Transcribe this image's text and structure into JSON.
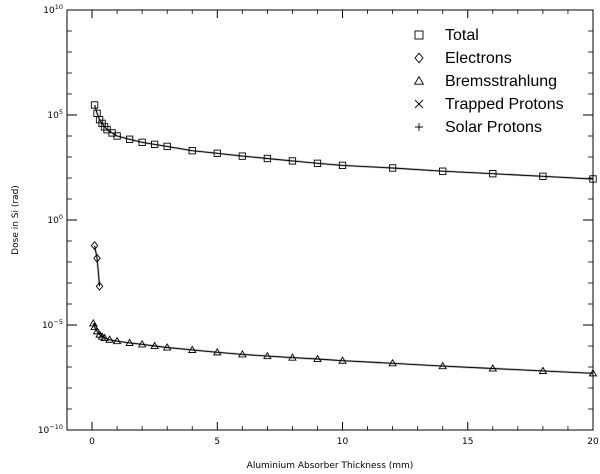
{
  "chart_data": {
    "type": "scatter",
    "xlabel": "Aluminium Absorber Thickness (mm)",
    "ylabel": "Dose in Si (rad)",
    "xlim": [
      -1,
      20
    ],
    "ylim_log10": [
      -10,
      10
    ],
    "yscale": "log",
    "x_ticks": [
      0,
      5,
      10,
      15,
      20
    ],
    "y_tick_exponents": [
      -10,
      -5,
      0,
      5,
      10
    ],
    "y_tick_base": "10",
    "grid": false,
    "legend_position": "top-right",
    "series": [
      {
        "name": "Total",
        "marker": "square",
        "x": [
          0.1,
          0.2,
          0.3,
          0.4,
          0.5,
          0.6,
          0.8,
          1.0,
          1.5,
          2.0,
          2.5,
          3.0,
          4.0,
          5.0,
          6.0,
          7.0,
          8.0,
          9.0,
          10.0,
          12.0,
          14.0,
          16.0,
          18.0,
          20.0
        ],
        "y": [
          300000.0,
          120000.0,
          60000.0,
          40000.0,
          27000.0,
          20000.0,
          14000.0,
          10000.0,
          7000.0,
          5000.0,
          4000.0,
          3200.0,
          2000.0,
          1500.0,
          1100.0,
          850,
          650,
          500,
          400,
          300,
          210,
          160,
          120,
          90
        ]
      },
      {
        "name": "Electrons",
        "marker": "diamond",
        "x": [
          0.1,
          0.2,
          0.3
        ],
        "y": [
          0.06,
          0.015,
          0.0007
        ]
      },
      {
        "name": "Bremsstrahlung",
        "marker": "triangle",
        "x": [
          0.05,
          0.1,
          0.2,
          0.3,
          0.4,
          0.5,
          0.7,
          1.0,
          1.5,
          2.0,
          2.5,
          3.0,
          4.0,
          5.0,
          6.0,
          7.0,
          8.0,
          9.0,
          10.0,
          12.0,
          14.0,
          16.0,
          18.0,
          20.0
        ],
        "y": [
          1.2e-05,
          8e-06,
          5e-06,
          3.5e-06,
          2.8e-06,
          2.4e-06,
          2e-06,
          1.7e-06,
          1.4e-06,
          1.2e-06,
          1e-06,
          8.5e-07,
          6.5e-07,
          5e-07,
          4e-07,
          3.3e-07,
          2.8e-07,
          2.4e-07,
          2e-07,
          1.5e-07,
          1.1e-07,
          8.5e-08,
          6.5e-08,
          5e-08
        ]
      },
      {
        "name": "Trapped Protons",
        "marker": "cross",
        "x": [],
        "y": []
      },
      {
        "name": "Solar Protons",
        "marker": "plus",
        "x": [],
        "y": []
      }
    ]
  }
}
